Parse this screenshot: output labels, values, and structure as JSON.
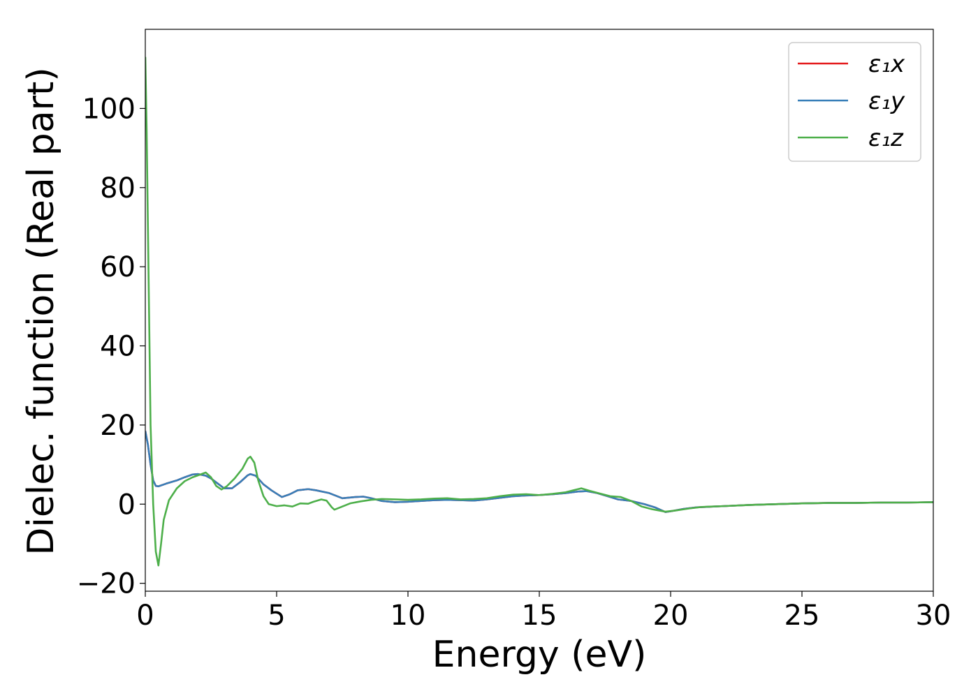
{
  "chart_data": {
    "type": "line",
    "xlabel": "Energy (eV)",
    "ylabel": "Dielec. function (Real part)",
    "xlim": [
      0,
      30
    ],
    "ylim": [
      -22,
      120
    ],
    "x_ticks": [
      0,
      5,
      10,
      15,
      20,
      25,
      30
    ],
    "y_ticks": [
      -20,
      0,
      20,
      40,
      60,
      80,
      100
    ],
    "x_tick_labels": [
      "0",
      "5",
      "10",
      "15",
      "20",
      "25",
      "30"
    ],
    "y_tick_labels": [
      "−20",
      "0",
      "20",
      "40",
      "60",
      "80",
      "100"
    ],
    "grid": false,
    "legend_position": "top-right",
    "series": [
      {
        "name": "ε₁x",
        "color": "#e41a1c",
        "points": [
          [
            0,
            18.5
          ],
          [
            0.1,
            15.0
          ],
          [
            0.2,
            10.0
          ],
          [
            0.3,
            6.0
          ],
          [
            0.4,
            4.6
          ],
          [
            0.5,
            4.5
          ],
          [
            0.8,
            5.2
          ],
          [
            1.2,
            6.0
          ],
          [
            1.5,
            6.8
          ],
          [
            1.8,
            7.5
          ],
          [
            2.0,
            7.6
          ],
          [
            2.3,
            7.2
          ],
          [
            2.5,
            6.5
          ],
          [
            2.8,
            5.0
          ],
          [
            3.0,
            4.0
          ],
          [
            3.3,
            4.0
          ],
          [
            3.6,
            5.5
          ],
          [
            3.9,
            7.3
          ],
          [
            4.0,
            7.6
          ],
          [
            4.2,
            7.2
          ],
          [
            4.5,
            5.0
          ],
          [
            4.8,
            3.5
          ],
          [
            5.2,
            1.8
          ],
          [
            5.5,
            2.5
          ],
          [
            5.8,
            3.5
          ],
          [
            6.2,
            3.8
          ],
          [
            6.5,
            3.5
          ],
          [
            7.0,
            2.8
          ],
          [
            7.5,
            1.5
          ],
          [
            8.0,
            1.8
          ],
          [
            8.3,
            1.9
          ],
          [
            8.6,
            1.5
          ],
          [
            9.0,
            0.8
          ],
          [
            9.5,
            0.5
          ],
          [
            10.0,
            0.6
          ],
          [
            10.5,
            0.8
          ],
          [
            11.0,
            1.0
          ],
          [
            11.5,
            1.1
          ],
          [
            12.0,
            1.0
          ],
          [
            12.5,
            0.9
          ],
          [
            13.0,
            1.2
          ],
          [
            13.5,
            1.6
          ],
          [
            14.0,
            2.0
          ],
          [
            14.5,
            2.2
          ],
          [
            15.0,
            2.3
          ],
          [
            15.5,
            2.5
          ],
          [
            16.0,
            2.8
          ],
          [
            16.5,
            3.2
          ],
          [
            16.8,
            3.3
          ],
          [
            17.2,
            2.8
          ],
          [
            17.6,
            2.0
          ],
          [
            18.0,
            1.2
          ],
          [
            18.5,
            0.8
          ],
          [
            19.0,
            0.0
          ],
          [
            19.4,
            -0.8
          ],
          [
            19.8,
            -2.0
          ],
          [
            20.0,
            -1.8
          ],
          [
            20.5,
            -1.2
          ],
          [
            21.0,
            -0.8
          ],
          [
            22.0,
            -0.5
          ],
          [
            23.0,
            -0.2
          ],
          [
            24.0,
            0.0
          ],
          [
            25.0,
            0.2
          ],
          [
            26.0,
            0.3
          ],
          [
            27.0,
            0.3
          ],
          [
            28.0,
            0.4
          ],
          [
            29.0,
            0.4
          ],
          [
            30.0,
            0.5
          ]
        ]
      },
      {
        "name": "ε₁y",
        "color": "#377eb8",
        "points": [
          [
            0,
            18.5
          ],
          [
            0.1,
            15.0
          ],
          [
            0.2,
            10.0
          ],
          [
            0.3,
            6.0
          ],
          [
            0.4,
            4.6
          ],
          [
            0.5,
            4.5
          ],
          [
            0.8,
            5.2
          ],
          [
            1.2,
            6.0
          ],
          [
            1.5,
            6.8
          ],
          [
            1.8,
            7.5
          ],
          [
            2.0,
            7.6
          ],
          [
            2.3,
            7.2
          ],
          [
            2.5,
            6.5
          ],
          [
            2.8,
            5.0
          ],
          [
            3.0,
            4.0
          ],
          [
            3.3,
            4.0
          ],
          [
            3.6,
            5.5
          ],
          [
            3.9,
            7.3
          ],
          [
            4.0,
            7.6
          ],
          [
            4.2,
            7.2
          ],
          [
            4.5,
            5.0
          ],
          [
            4.8,
            3.5
          ],
          [
            5.2,
            1.8
          ],
          [
            5.5,
            2.5
          ],
          [
            5.8,
            3.5
          ],
          [
            6.2,
            3.8
          ],
          [
            6.5,
            3.5
          ],
          [
            7.0,
            2.8
          ],
          [
            7.5,
            1.5
          ],
          [
            8.0,
            1.8
          ],
          [
            8.3,
            1.9
          ],
          [
            8.6,
            1.5
          ],
          [
            9.0,
            0.8
          ],
          [
            9.5,
            0.5
          ],
          [
            10.0,
            0.6
          ],
          [
            10.5,
            0.8
          ],
          [
            11.0,
            1.0
          ],
          [
            11.5,
            1.1
          ],
          [
            12.0,
            1.0
          ],
          [
            12.5,
            0.9
          ],
          [
            13.0,
            1.2
          ],
          [
            13.5,
            1.6
          ],
          [
            14.0,
            2.0
          ],
          [
            14.5,
            2.2
          ],
          [
            15.0,
            2.3
          ],
          [
            15.5,
            2.5
          ],
          [
            16.0,
            2.8
          ],
          [
            16.5,
            3.2
          ],
          [
            16.8,
            3.3
          ],
          [
            17.2,
            2.8
          ],
          [
            17.6,
            2.0
          ],
          [
            18.0,
            1.2
          ],
          [
            18.5,
            0.8
          ],
          [
            19.0,
            0.0
          ],
          [
            19.4,
            -0.8
          ],
          [
            19.8,
            -2.0
          ],
          [
            20.0,
            -1.8
          ],
          [
            20.5,
            -1.2
          ],
          [
            21.0,
            -0.8
          ],
          [
            22.0,
            -0.5
          ],
          [
            23.0,
            -0.2
          ],
          [
            24.0,
            0.0
          ],
          [
            25.0,
            0.2
          ],
          [
            26.0,
            0.3
          ],
          [
            27.0,
            0.3
          ],
          [
            28.0,
            0.4
          ],
          [
            29.0,
            0.4
          ],
          [
            30.0,
            0.5
          ]
        ]
      },
      {
        "name": "ε₁z",
        "color": "#4daf4a",
        "points": [
          [
            0,
            113.0
          ],
          [
            0.05,
            95.0
          ],
          [
            0.1,
            70.0
          ],
          [
            0.15,
            45.0
          ],
          [
            0.2,
            20.0
          ],
          [
            0.3,
            0.0
          ],
          [
            0.4,
            -12.0
          ],
          [
            0.5,
            -15.5
          ],
          [
            0.6,
            -10.0
          ],
          [
            0.7,
            -4.0
          ],
          [
            0.9,
            1.0
          ],
          [
            1.2,
            4.0
          ],
          [
            1.5,
            5.8
          ],
          [
            1.8,
            6.8
          ],
          [
            2.1,
            7.5
          ],
          [
            2.3,
            8.0
          ],
          [
            2.5,
            6.8
          ],
          [
            2.7,
            4.6
          ],
          [
            2.9,
            3.7
          ],
          [
            3.1,
            4.5
          ],
          [
            3.4,
            6.5
          ],
          [
            3.7,
            9.0
          ],
          [
            3.9,
            11.5
          ],
          [
            4.0,
            12.0
          ],
          [
            4.15,
            10.5
          ],
          [
            4.3,
            6.0
          ],
          [
            4.5,
            2.0
          ],
          [
            4.7,
            0.0
          ],
          [
            5.0,
            -0.5
          ],
          [
            5.3,
            -0.3
          ],
          [
            5.6,
            -0.6
          ],
          [
            5.9,
            0.2
          ],
          [
            6.2,
            0.1
          ],
          [
            6.4,
            0.6
          ],
          [
            6.7,
            1.2
          ],
          [
            6.9,
            0.9
          ],
          [
            7.1,
            -0.8
          ],
          [
            7.2,
            -1.4
          ],
          [
            7.5,
            -0.6
          ],
          [
            7.8,
            0.2
          ],
          [
            8.2,
            0.7
          ],
          [
            8.6,
            1.1
          ],
          [
            9.0,
            1.3
          ],
          [
            9.5,
            1.2
          ],
          [
            10.0,
            1.1
          ],
          [
            10.5,
            1.2
          ],
          [
            11.0,
            1.4
          ],
          [
            11.5,
            1.5
          ],
          [
            12.0,
            1.2
          ],
          [
            12.5,
            1.3
          ],
          [
            13.0,
            1.5
          ],
          [
            13.5,
            2.0
          ],
          [
            14.0,
            2.4
          ],
          [
            14.5,
            2.5
          ],
          [
            15.0,
            2.3
          ],
          [
            15.5,
            2.6
          ],
          [
            16.0,
            3.0
          ],
          [
            16.3,
            3.5
          ],
          [
            16.6,
            4.0
          ],
          [
            16.9,
            3.4
          ],
          [
            17.3,
            2.7
          ],
          [
            17.7,
            2.0
          ],
          [
            18.1,
            1.8
          ],
          [
            18.5,
            0.8
          ],
          [
            18.9,
            -0.6
          ],
          [
            19.3,
            -1.3
          ],
          [
            19.8,
            -1.9
          ],
          [
            20.2,
            -1.6
          ],
          [
            20.7,
            -1.1
          ],
          [
            21.2,
            -0.7
          ],
          [
            22.0,
            -0.5
          ],
          [
            23.0,
            -0.2
          ],
          [
            24.0,
            0.0
          ],
          [
            25.0,
            0.2
          ],
          [
            26.0,
            0.3
          ],
          [
            27.0,
            0.3
          ],
          [
            28.0,
            0.4
          ],
          [
            29.0,
            0.4
          ],
          [
            30.0,
            0.5
          ]
        ]
      }
    ]
  }
}
